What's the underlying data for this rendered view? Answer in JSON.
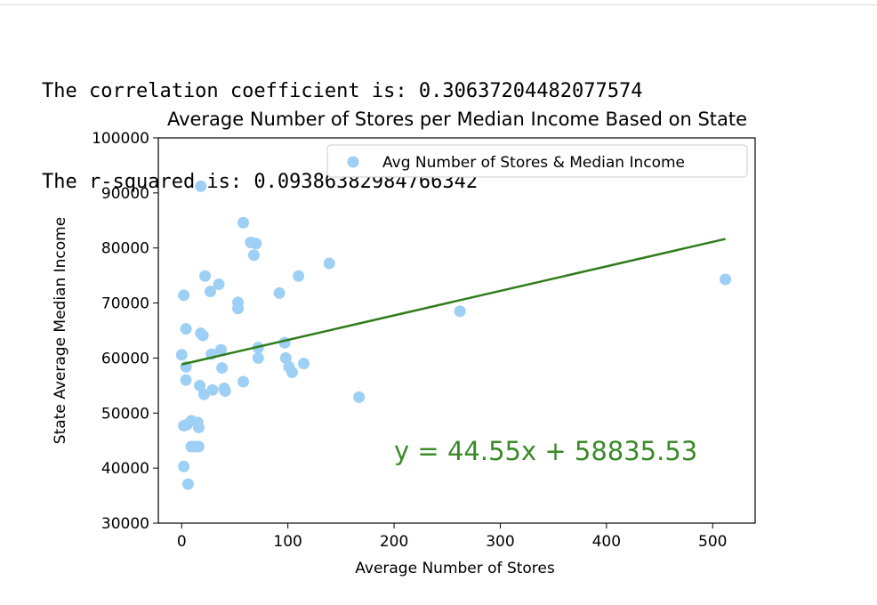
{
  "output": {
    "line1": "The correlation coefficient is: 0.30637204482077574",
    "line2": "The r-squared is: 0.09386382984766342"
  },
  "colors": {
    "points": "#9ecff5",
    "regression": "#2f7d1a",
    "equation": "#3a8a28",
    "axis": "#000000"
  },
  "chart_data": {
    "type": "scatter",
    "title": "Average Number of Stores per Median Income Based on State",
    "xlabel": "Average Number of Stores",
    "ylabel": "State Average Median Income",
    "xlim": [
      -22,
      540
    ],
    "ylim": [
      30000,
      100000
    ],
    "xticks": [
      0,
      100,
      200,
      300,
      400,
      500
    ],
    "yticks": [
      30000,
      40000,
      50000,
      60000,
      70000,
      80000,
      90000,
      100000
    ],
    "grid": false,
    "legend": {
      "position": "top-right",
      "entries": [
        "Avg Number of Stores & Median Income"
      ]
    },
    "series": [
      {
        "name": "Avg Number of Stores & Median Income",
        "points": [
          [
            18,
            91200
          ],
          [
            58,
            84600
          ],
          [
            65,
            81000
          ],
          [
            70,
            80800
          ],
          [
            68,
            78700
          ],
          [
            139,
            77200
          ],
          [
            110,
            74900
          ],
          [
            22,
            74900
          ],
          [
            512,
            74300
          ],
          [
            35,
            73400
          ],
          [
            27,
            72100
          ],
          [
            2,
            71400
          ],
          [
            92,
            71800
          ],
          [
            53,
            70100
          ],
          [
            53,
            69000
          ],
          [
            262,
            68500
          ],
          [
            4,
            65300
          ],
          [
            18,
            64500
          ],
          [
            20,
            64100
          ],
          [
            97,
            62800
          ],
          [
            72,
            61900
          ],
          [
            37,
            61500
          ],
          [
            0,
            60600
          ],
          [
            28,
            60700
          ],
          [
            72,
            60000
          ],
          [
            98,
            60000
          ],
          [
            115,
            59000
          ],
          [
            101,
            58400
          ],
          [
            4,
            58400
          ],
          [
            38,
            58200
          ],
          [
            104,
            57400
          ],
          [
            4,
            56000
          ],
          [
            58,
            55700
          ],
          [
            17,
            55000
          ],
          [
            40,
            54500
          ],
          [
            41,
            54000
          ],
          [
            29,
            54200
          ],
          [
            21,
            53400
          ],
          [
            167,
            52900
          ],
          [
            9,
            48600
          ],
          [
            15,
            48300
          ],
          [
            2,
            47700
          ],
          [
            5,
            47900
          ],
          [
            16,
            47400
          ],
          [
            9,
            43900
          ],
          [
            13,
            43900
          ],
          [
            16,
            43900
          ],
          [
            2,
            40300
          ],
          [
            6,
            37100
          ]
        ]
      }
    ],
    "regression": {
      "slope": 44.55,
      "intercept": 58835.53,
      "x_range": [
        0,
        512
      ],
      "equation_label": "y = 44.55x + 58835.53",
      "label_at": [
        200,
        41500
      ]
    }
  }
}
